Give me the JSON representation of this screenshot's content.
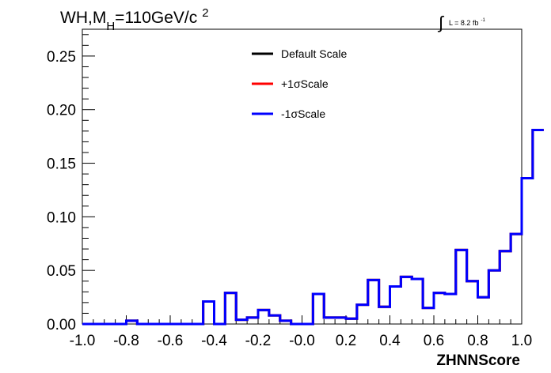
{
  "chart_data": {
    "type": "line",
    "title_main": "WH,M",
    "title_sub": "H",
    "title_rest": "=110GeV/c",
    "title_sup": "2",
    "lumi_text": "L = 8.2 fb",
    "lumi_sup": "-1",
    "xlabel": "ZHNNScore",
    "ylabel": "",
    "xlim": [
      -1.0,
      1.0
    ],
    "ylim": [
      0,
      0.275
    ],
    "x_ticks": [
      "-1.0",
      "-0.8",
      "-0.6",
      "-0.4",
      "-0.2",
      "-0.0",
      "0.2",
      "0.4",
      "0.6",
      "0.8",
      "1.0"
    ],
    "y_ticks": [
      "0.00",
      "0.05",
      "0.10",
      "0.15",
      "0.20",
      "0.25"
    ],
    "bin_edges": [
      -1.0,
      0.05
    ],
    "series": [
      {
        "name": "Default Scale",
        "color": "#000000",
        "values": [
          0.0,
          0.0,
          0.0,
          0.0,
          0.003,
          0.0,
          0.0,
          0.0,
          0.0,
          0.0,
          0.0,
          0.021,
          0.0,
          0.029,
          0.004,
          0.006,
          0.013,
          0.008,
          0.003,
          0.0,
          0.0,
          0.028,
          0.006,
          0.006,
          0.005,
          0.018,
          0.041,
          0.016,
          0.035,
          0.044,
          0.042,
          0.015,
          0.029,
          0.028,
          0.069,
          0.04,
          0.025,
          0.05,
          0.068,
          0.084,
          0.136,
          0.181
        ]
      },
      {
        "name": "+1σScale",
        "color": "#ff0000",
        "values": [
          0.0,
          0.0,
          0.0,
          0.0,
          0.003,
          0.0,
          0.0,
          0.0,
          0.0,
          0.0,
          0.0,
          0.021,
          0.0,
          0.029,
          0.004,
          0.006,
          0.013,
          0.008,
          0.003,
          0.0,
          0.0,
          0.028,
          0.006,
          0.006,
          0.005,
          0.018,
          0.041,
          0.016,
          0.035,
          0.044,
          0.042,
          0.015,
          0.029,
          0.028,
          0.069,
          0.04,
          0.025,
          0.05,
          0.068,
          0.084,
          0.136,
          0.181
        ]
      },
      {
        "name": "-1σScale",
        "color": "#0000ff",
        "values": [
          0.0,
          0.0,
          0.0,
          0.0,
          0.003,
          0.0,
          0.0,
          0.0,
          0.0,
          0.0,
          0.0,
          0.021,
          0.0,
          0.029,
          0.004,
          0.006,
          0.013,
          0.008,
          0.003,
          0.0,
          0.0,
          0.028,
          0.006,
          0.006,
          0.005,
          0.018,
          0.041,
          0.016,
          0.035,
          0.044,
          0.042,
          0.015,
          0.029,
          0.028,
          0.069,
          0.04,
          0.025,
          0.05,
          0.068,
          0.084,
          0.136,
          0.181
        ]
      }
    ],
    "legend_position": "top-center",
    "grid": false
  }
}
